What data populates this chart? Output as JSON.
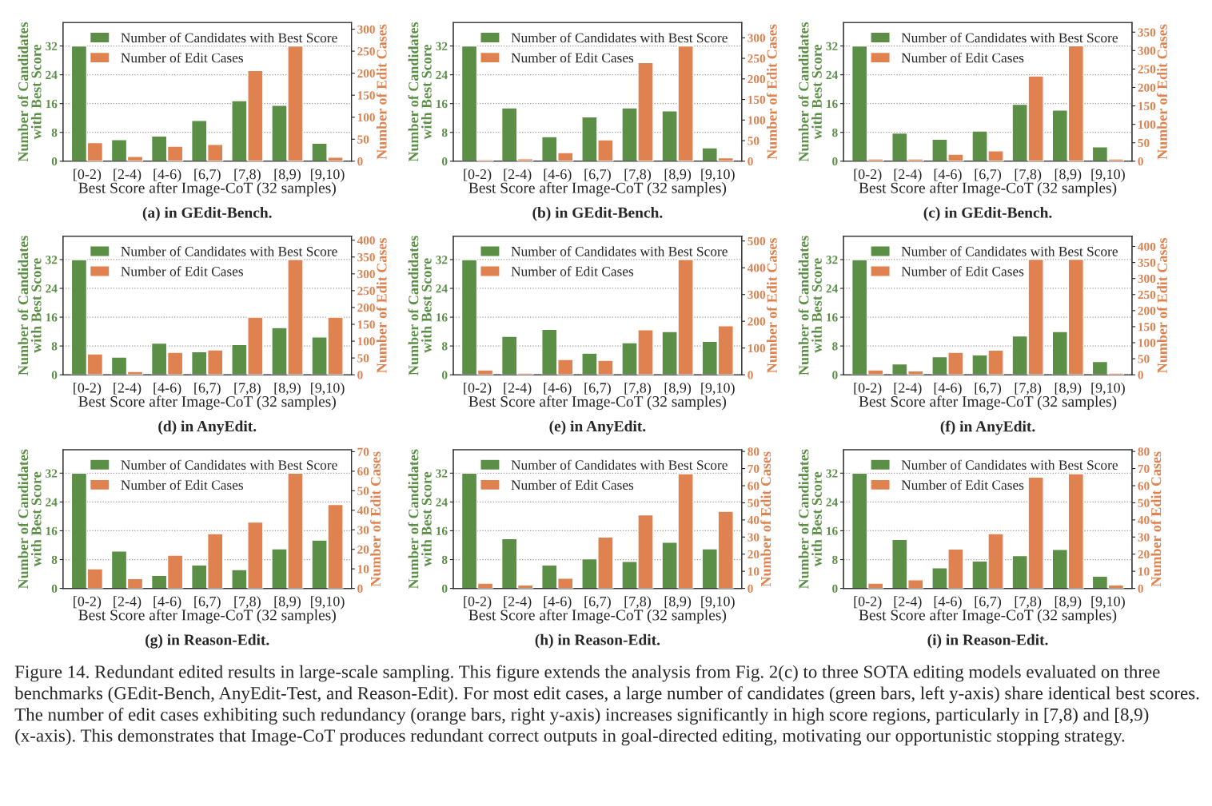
{
  "chart_data": [
    {
      "type": "bar",
      "title": "(a) in GEdit-Bench.",
      "xlabel": "Best Score after Image-CoT (32 samples)",
      "ylabel": "Number of Candidates\nwith Best Score",
      "y2label": "Number of Edit Cases",
      "categories": [
        "[0-2)",
        "[2-4)",
        "[4-6)",
        "[6,7)",
        "[7,8)",
        "[8,9)",
        "[9,10)"
      ],
      "series": [
        {
          "name": "Number of Candidates with Best Score",
          "color": "#5a8f45",
          "values": [
            32,
            6,
            7,
            11.3,
            16.8,
            15.5,
            5
          ]
        },
        {
          "name": "Number of Edit Cases",
          "color": "#e0824f",
          "axis": "y2",
          "values": [
            42,
            11,
            34,
            38,
            206,
            262,
            9
          ]
        }
      ],
      "ylim": [
        0,
        38.5
      ],
      "yticks": [
        0,
        8,
        16,
        24,
        32
      ],
      "y2lim": [
        0,
        315
      ],
      "y2ticks": [
        0,
        50,
        100,
        150,
        200,
        250,
        300
      ],
      "grid": "y",
      "legend": "top left"
    },
    {
      "type": "bar",
      "title": "(b) in GEdit-Bench.",
      "xlabel": "Best Score after Image-CoT (32 samples)",
      "ylabel": "Number of Candidates\nwith Best Score",
      "y2label": "Number of Edit Cases",
      "categories": [
        "[0-2)",
        "[2-4)",
        "[4-6)",
        "[6,7)",
        "[7,8)",
        "[8,9)",
        "[9,10)"
      ],
      "series": [
        {
          "name": "Number of Candidates with Best Score",
          "color": "#5a8f45",
          "values": [
            32,
            14.8,
            6.8,
            12.3,
            14.8,
            14,
            3.7
          ]
        },
        {
          "name": "Number of Edit Cases",
          "color": "#e0824f",
          "axis": "y2",
          "values": [
            4,
            6,
            21,
            52,
            240,
            280,
            8
          ]
        }
      ],
      "ylim": [
        0,
        38.5
      ],
      "yticks": [
        0,
        8,
        16,
        24,
        32
      ],
      "y2lim": [
        0,
        337
      ],
      "y2ticks": [
        0,
        50,
        100,
        150,
        200,
        250,
        300
      ],
      "grid": "y",
      "legend": "top left"
    },
    {
      "type": "bar",
      "title": "(c) in GEdit-Bench.",
      "xlabel": "Best Score after Image-CoT (32 samples)",
      "ylabel": "Number of Candidates\nwith Best Score",
      "y2label": "Number of Edit Cases",
      "categories": [
        "[0-2)",
        "[2-4)",
        "[4-6)",
        "[6,7)",
        "[7,8)",
        "[8,9)",
        "[9,10)"
      ],
      "series": [
        {
          "name": "Number of Candidates with Best Score",
          "color": "#5a8f45",
          "values": [
            32,
            7.8,
            6.1,
            8.4,
            15.8,
            14.2,
            4
          ]
        },
        {
          "name": "Number of Edit Cases",
          "color": "#e0824f",
          "axis": "y2",
          "values": [
            6,
            6,
            19,
            28,
            231,
            313,
            6
          ]
        }
      ],
      "ylim": [
        0,
        38.5
      ],
      "yticks": [
        0,
        8,
        16,
        24,
        32
      ],
      "y2lim": [
        0,
        376
      ],
      "y2ticks": [
        0,
        50,
        100,
        150,
        200,
        250,
        300,
        350
      ],
      "grid": "y",
      "legend": "top left"
    },
    {
      "type": "bar",
      "title": "(d) in AnyEdit.",
      "xlabel": "Best Score after Image-CoT (32 samples)",
      "ylabel": "Number of Candidates\nwith Best Score",
      "y2label": "Number of Edit Cases",
      "categories": [
        "[0-2)",
        "[2-4)",
        "[4-6)",
        "[6,7)",
        "[7,8)",
        "[8,9)",
        "[9,10)"
      ],
      "series": [
        {
          "name": "Number of Candidates with Best Score",
          "color": "#5a8f45",
          "values": [
            32,
            4.9,
            8.8,
            6.4,
            8.4,
            13.1,
            10.5
          ]
        },
        {
          "name": "Number of Edit Cases",
          "color": "#e0824f",
          "axis": "y2",
          "values": [
            62,
            10,
            67,
            74,
            171,
            343,
            171
          ]
        }
      ],
      "ylim": [
        0,
        38.5
      ],
      "yticks": [
        0,
        8,
        16,
        24,
        32
      ],
      "y2lim": [
        0,
        412
      ],
      "y2ticks": [
        0,
        50,
        100,
        150,
        200,
        250,
        300,
        350,
        400
      ],
      "grid": "y",
      "legend": "top left"
    },
    {
      "type": "bar",
      "title": "(e) in AnyEdit.",
      "xlabel": "Best Score after Image-CoT (32 samples)",
      "ylabel": "Number of Candidates\nwith Best Score",
      "y2label": "Number of Edit Cases",
      "categories": [
        "[0-2)",
        "[2-4)",
        "[4-6)",
        "[6,7)",
        "[7,8)",
        "[8,9)",
        "[9,10)"
      ],
      "series": [
        {
          "name": "Number of Candidates with Best Score",
          "color": "#5a8f45",
          "values": [
            32,
            10.7,
            12.6,
            6,
            8.9,
            12,
            9.3
          ]
        },
        {
          "name": "Number of Edit Cases",
          "color": "#e0824f",
          "axis": "y2",
          "values": [
            18,
            6,
            57,
            54,
            168,
            431,
            183
          ]
        }
      ],
      "ylim": [
        0,
        38.5
      ],
      "yticks": [
        0,
        8,
        16,
        24,
        32
      ],
      "y2lim": [
        0,
        518
      ],
      "y2ticks": [
        0,
        100,
        200,
        300,
        400,
        500
      ],
      "grid": "y",
      "legend": "top left"
    },
    {
      "type": "bar",
      "title": "(f) in AnyEdit.",
      "xlabel": "Best Score after Image-CoT (32 samples)",
      "ylabel": "Number of Candidates\nwith Best Score",
      "y2label": "Number of Edit Cases",
      "categories": [
        "[0-2)",
        "[2-4)",
        "[4-6)",
        "[6,7)",
        "[7,8)",
        "[8,9)",
        "[9,10)"
      ],
      "series": [
        {
          "name": "Number of Candidates with Best Score",
          "color": "#5a8f45",
          "values": [
            32,
            3,
            5,
            5.5,
            10.8,
            12,
            3.7
          ]
        },
        {
          "name": "Number of Edit Cases",
          "color": "#e0824f",
          "axis": "y2",
          "values": [
            15,
            12,
            70,
            77,
            360,
            360,
            5
          ]
        }
      ],
      "ylim": [
        0,
        38.5
      ],
      "yticks": [
        0,
        8,
        16,
        24,
        32
      ],
      "y2lim": [
        0,
        432
      ],
      "y2ticks": [
        0,
        50,
        100,
        150,
        200,
        250,
        300,
        350,
        400
      ],
      "grid": "y",
      "legend": "top left"
    },
    {
      "type": "bar",
      "title": "(g) in Reason-Edit.",
      "xlabel": "Best Score after Image-CoT (32 samples)",
      "ylabel": "Number of Candidates\nwith Best Score",
      "y2label": "Number of Edit Cases",
      "categories": [
        "[0-2)",
        "[2-4)",
        "[4-6)",
        "[6,7)",
        "[7,8)",
        "[8,9)",
        "[9,10)"
      ],
      "series": [
        {
          "name": "Number of Candidates with Best Score",
          "color": "#5a8f45",
          "values": [
            32,
            10.4,
            3.6,
            6.5,
            5.2,
            11,
            13.4
          ]
        },
        {
          "name": "Number of Edit Cases",
          "color": "#e0824f",
          "axis": "y2",
          "values": [
            10,
            5,
            17,
            28,
            34,
            59,
            43
          ]
        }
      ],
      "ylim": [
        0,
        38.5
      ],
      "yticks": [
        0,
        8,
        16,
        24,
        32
      ],
      "y2lim": [
        0,
        71
      ],
      "y2ticks": [
        0,
        10,
        20,
        30,
        40,
        50,
        60,
        70
      ],
      "grid": "y",
      "legend": "top left"
    },
    {
      "type": "bar",
      "title": "(h) in Reason-Edit.",
      "xlabel": "Best Score after Image-CoT (32 samples)",
      "ylabel": "Number of Candidates\nwith Best Score",
      "y2label": "Number of Edit Cases",
      "categories": [
        "[0-2)",
        "[2-4)",
        "[4-6)",
        "[6,7)",
        "[7,8)",
        "[8,9)",
        "[9,10)"
      ],
      "series": [
        {
          "name": "Number of Candidates with Best Score",
          "color": "#5a8f45",
          "values": [
            32,
            13.8,
            6.5,
            8.2,
            7.5,
            12.8,
            11
          ]
        },
        {
          "name": "Number of Edit Cases",
          "color": "#e0824f",
          "axis": "y2",
          "values": [
            3,
            2,
            6,
            30,
            43,
            67,
            45
          ]
        }
      ],
      "ylim": [
        0,
        38.5
      ],
      "yticks": [
        0,
        8,
        16,
        24,
        32
      ],
      "y2lim": [
        0,
        81
      ],
      "y2ticks": [
        0,
        10,
        20,
        30,
        40,
        50,
        60,
        70,
        80
      ],
      "grid": "y",
      "legend": "top left"
    },
    {
      "type": "bar",
      "title": "(i) in Reason-Edit.",
      "xlabel": "Best Score after Image-CoT (32 samples)",
      "ylabel": "Number of Candidates\nwith Best Score",
      "y2label": "Number of Edit Cases",
      "categories": [
        "[0-2)",
        "[2-4)",
        "[4-6)",
        "[6,7)",
        "[7,8)",
        "[8,9)",
        "[9,10)"
      ],
      "series": [
        {
          "name": "Number of Candidates with Best Score",
          "color": "#5a8f45",
          "values": [
            32,
            13.6,
            5.7,
            7.6,
            9.1,
            10.8,
            3.4
          ]
        },
        {
          "name": "Number of Edit Cases",
          "color": "#e0824f",
          "axis": "y2",
          "values": [
            3,
            5,
            23,
            32,
            65,
            67,
            2
          ]
        }
      ],
      "ylim": [
        0,
        38.5
      ],
      "yticks": [
        0,
        8,
        16,
        24,
        32
      ],
      "y2lim": [
        0,
        81
      ],
      "y2ticks": [
        0,
        10,
        20,
        30,
        40,
        50,
        60,
        70,
        80
      ],
      "grid": "y",
      "legend": "top left",
      "annotations": [
        "Figure 14. Redundant edited results in large-scale sampling. This figure extends the analysis from Fig. 2(c) to three SOTA editing models evaluated on three benchmarks (GEdit-Bench, AnyEdit-Test, and Reason-Edit). For most edit cases, a large number of candidates (green bars, left y-axis) share identical best scores. The number of edit cases exhibiting such redundancy (orange bars, right y-axis) increases significantly in high score regions, particularly in [7,8) and [8,9) (x-axis). This demonstrates that Image-CoT produces redundant correct outputs in goal-directed editing, motivating our opportunistic stopping strategy."
      ]
    }
  ]
}
